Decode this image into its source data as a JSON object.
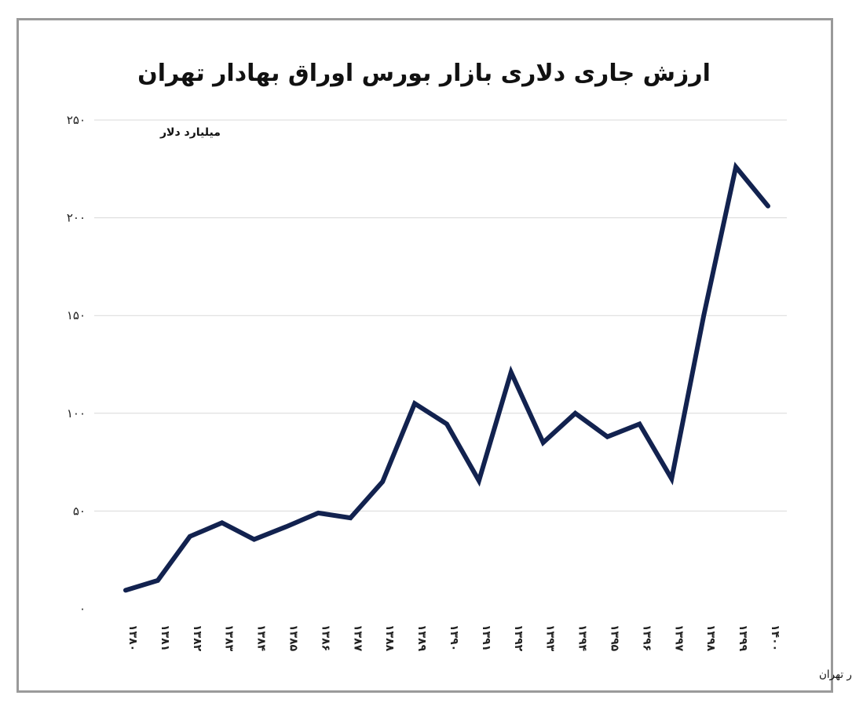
{
  "chart_data": {
    "type": "line",
    "title": "ارزش جاری دلاری بازار بورس اوراق بهادار تهران",
    "ylabel": "میلیارد دلار",
    "xlabel": "",
    "source": "تحلیل و استنتاج: احسان سلطانی بر اساس داده های بانک مرکزی و بورس اوراق بهادار تهران",
    "ylim": [
      0,
      250
    ],
    "yticks": [
      0,
      50,
      100,
      150,
      200,
      250
    ],
    "ytick_labels": [
      "۰",
      "۵۰",
      "۱۰۰",
      "۱۵۰",
      "۲۰۰",
      "۲۵۰"
    ],
    "categories": [
      "۱۳۸۰",
      "۱۳۸۱",
      "۱۳۸۲",
      "۱۳۸۳",
      "۱۳۸۴",
      "۱۳۸۵",
      "۱۳۸۶",
      "۱۳۸۷",
      "۱۳۸۸",
      "۱۳۸۹",
      "۱۳۹۰",
      "۱۳۹۱",
      "۱۳۹۲",
      "۱۳۹۳",
      "۱۳۹۴",
      "۱۳۹۵",
      "۱۳۹۶",
      "۱۳۹۷",
      "۱۳۹۸",
      "۱۳۹۹",
      "۱۴۰۰"
    ],
    "series": [
      {
        "name": "ارزش جاری دلاری",
        "color": "#12224f",
        "values": [
          9.5,
          14.5,
          37,
          44,
          35.5,
          42,
          49,
          46.5,
          65,
          105,
          94.5,
          65.5,
          121,
          85,
          100,
          88,
          94.5,
          66.5,
          150,
          226,
          206
        ]
      }
    ],
    "grid": true
  }
}
